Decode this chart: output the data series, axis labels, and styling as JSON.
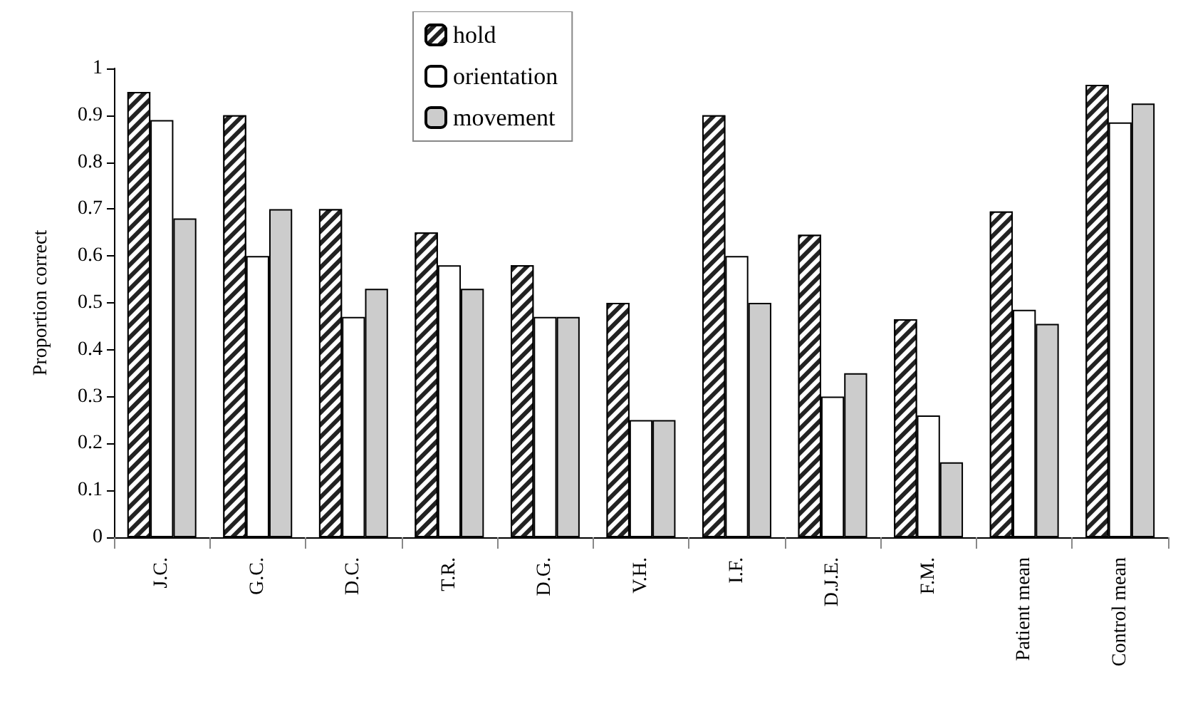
{
  "chart_data": {
    "type": "bar",
    "ylabel": "Proportion correct",
    "categories": [
      "J.C.",
      "G.C.",
      "D.C.",
      "T.R.",
      "D.G.",
      "V.H.",
      "I.F.",
      "D.J.E.",
      "F.M.",
      "Patient mean",
      "Control mean"
    ],
    "series": [
      {
        "name": "hold",
        "color": "#222222",
        "values": [
          0.95,
          0.9,
          0.7,
          0.65,
          0.58,
          0.5,
          0.9,
          0.645,
          0.465,
          0.695,
          0.965
        ]
      },
      {
        "name": "orientation",
        "color": "#ffffff",
        "values": [
          0.89,
          0.6,
          0.47,
          0.58,
          0.47,
          0.25,
          0.6,
          0.3,
          0.26,
          0.485,
          0.885
        ]
      },
      {
        "name": "movement",
        "color": "#cccccc",
        "values": [
          0.68,
          0.7,
          0.53,
          0.53,
          0.47,
          0.25,
          0.5,
          0.35,
          0.16,
          0.455,
          0.925
        ]
      }
    ],
    "ylim": [
      0,
      1
    ],
    "yticks": [
      0,
      0.1,
      0.2,
      0.3,
      0.4,
      0.5,
      0.6,
      0.7,
      0.8,
      0.9,
      1
    ],
    "grid": false,
    "legend": "top"
  }
}
